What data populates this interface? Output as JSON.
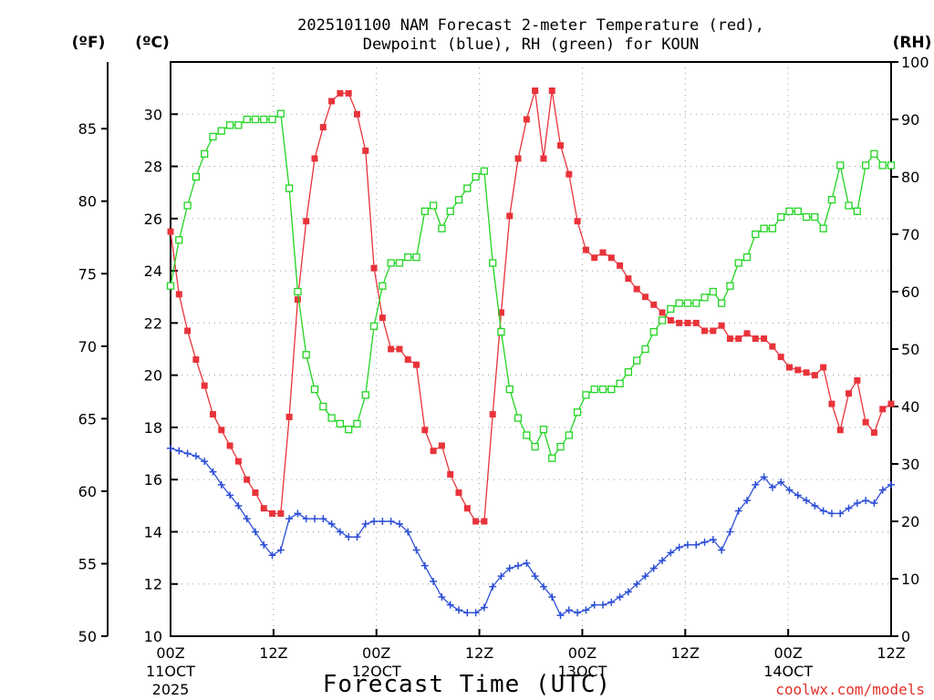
{
  "chart_data": {
    "type": "line",
    "title_line1": "2025101100 NAM Forecast 2-meter Temperature (red),",
    "title_line2": "Dewpoint (blue), RH (green) for KOUN",
    "xlabel": "Forecast Time (UTC)",
    "credit": "coolwx.com/models",
    "units": {
      "left_f": "(ºF)",
      "left_c": "(ºC)",
      "right": "(RH)"
    },
    "x_range_hours": [
      0,
      84
    ],
    "ylim_c": [
      10,
      32
    ],
    "ylim_f": [
      50,
      89.6
    ],
    "ylim_rh": [
      0,
      100
    ],
    "x_ticks": [
      {
        "h": 0,
        "line1": "00Z",
        "line2": "11OCT",
        "line3": "2025"
      },
      {
        "h": 12,
        "line1": "12Z",
        "line2": "",
        "line3": ""
      },
      {
        "h": 24,
        "line1": "00Z",
        "line2": "12OCT",
        "line3": ""
      },
      {
        "h": 36,
        "line1": "12Z",
        "line2": "",
        "line3": ""
      },
      {
        "h": 48,
        "line1": "00Z",
        "line2": "13OCT",
        "line3": ""
      },
      {
        "h": 60,
        "line1": "12Z",
        "line2": "",
        "line3": ""
      },
      {
        "h": 72,
        "line1": "00Z",
        "line2": "14OCT",
        "line3": ""
      },
      {
        "h": 84,
        "line1": "12Z",
        "line2": "",
        "line3": ""
      }
    ],
    "c_ticks": [
      "10",
      "12",
      "14",
      "16",
      "18",
      "20",
      "22",
      "24",
      "26",
      "28",
      "30"
    ],
    "f_ticks": [
      "50",
      "55",
      "60",
      "65",
      "70",
      "75",
      "80",
      "85"
    ],
    "rh_ticks": [
      "0",
      "10",
      "20",
      "30",
      "40",
      "50",
      "60",
      "70",
      "80",
      "90",
      "100"
    ],
    "grid": true,
    "series": [
      {
        "name": "Temperature",
        "unit": "C",
        "color": "#e8333a",
        "marker": "filled-square",
        "values": [
          25.5,
          23.1,
          21.7,
          20.6,
          19.6,
          18.5,
          17.9,
          17.3,
          16.7,
          16.0,
          15.5,
          14.9,
          14.7,
          14.7,
          18.4,
          22.9,
          25.9,
          28.3,
          29.5,
          30.5,
          30.8,
          30.8,
          30.0,
          28.6,
          24.1,
          22.2,
          21.0,
          21.0,
          20.6,
          20.4,
          17.9,
          17.1,
          17.3,
          16.2,
          15.5,
          14.9,
          14.4,
          14.4,
          18.5,
          22.4,
          26.1,
          28.3,
          29.8,
          30.9,
          28.3,
          30.9,
          28.8,
          27.7,
          25.9,
          24.8,
          24.5,
          24.7,
          24.5,
          24.2,
          23.7,
          23.3,
          23.0,
          22.7,
          22.4,
          22.1,
          22.0,
          22.0,
          22.0,
          21.7,
          21.7,
          21.9,
          21.4,
          21.4,
          21.6,
          21.4,
          21.4,
          21.1,
          20.7,
          20.3,
          20.2,
          20.1,
          20.0,
          20.3,
          18.9,
          17.9,
          19.3,
          19.8,
          18.2,
          17.8,
          18.7,
          18.9
        ]
      },
      {
        "name": "Dewpoint",
        "unit": "C",
        "color": "#2d4fd6",
        "marker": "plus",
        "values": [
          17.2,
          17.1,
          17.0,
          16.9,
          16.7,
          16.3,
          15.8,
          15.4,
          15.0,
          14.5,
          14.0,
          13.5,
          13.1,
          13.3,
          14.5,
          14.7,
          14.5,
          14.5,
          14.5,
          14.3,
          14.0,
          13.8,
          13.8,
          14.3,
          14.4,
          14.4,
          14.4,
          14.3,
          14.0,
          13.3,
          12.7,
          12.1,
          11.5,
          11.2,
          11.0,
          10.9,
          10.9,
          11.1,
          11.9,
          12.3,
          12.6,
          12.7,
          12.8,
          12.3,
          11.9,
          11.5,
          10.8,
          11.0,
          10.9,
          11.0,
          11.2,
          11.2,
          11.3,
          11.5,
          11.7,
          12.0,
          12.3,
          12.6,
          12.9,
          13.2,
          13.4,
          13.5,
          13.5,
          13.6,
          13.7,
          13.3,
          14.0,
          14.8,
          15.2,
          15.8,
          16.1,
          15.7,
          15.9,
          15.6,
          15.4,
          15.2,
          15.0,
          14.8,
          14.7,
          14.7,
          14.9,
          15.1,
          15.2,
          15.1,
          15.6,
          15.8
        ]
      },
      {
        "name": "RH",
        "unit": "%",
        "color": "#22d422",
        "marker": "hollow-square",
        "values": [
          61,
          69,
          75,
          80,
          84,
          87,
          88,
          89,
          89,
          90,
          90,
          90,
          90,
          91,
          78,
          60,
          49,
          43,
          40,
          38,
          37,
          36,
          37,
          42,
          54,
          61,
          65,
          65,
          66,
          66,
          74,
          75,
          71,
          74,
          76,
          78,
          80,
          81,
          65,
          53,
          43,
          38,
          35,
          33,
          36,
          31,
          33,
          35,
          39,
          42,
          43,
          43,
          43,
          44,
          46,
          48,
          50,
          53,
          55,
          57,
          58,
          58,
          58,
          59,
          60,
          58,
          61,
          65,
          66,
          70,
          71,
          71,
          73,
          74,
          74,
          73,
          73,
          71,
          76,
          82,
          75,
          74,
          82,
          84,
          82,
          82
        ]
      }
    ]
  }
}
